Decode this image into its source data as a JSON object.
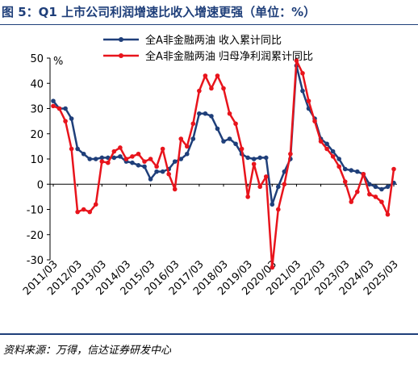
{
  "header": {
    "title": "图 5：Q1 上市公司利润增速比收入增速更强（单位：%）"
  },
  "footer": {
    "source": "资料来源：万得，信达证券研发中心"
  },
  "colors": {
    "revenue": "#1f3f7a",
    "profit": "#e8141c",
    "rule": "#1f3f7a"
  },
  "chart_data": {
    "type": "line",
    "ylabel": "%",
    "ylim": [
      -30,
      50
    ],
    "yticks": [
      -30,
      -20,
      -10,
      0,
      10,
      20,
      30,
      40,
      50
    ],
    "xticks": [
      "2011/03",
      "2012/03",
      "2013/03",
      "2014/03",
      "2015/03",
      "2016/03",
      "2017/03",
      "2018/03",
      "2019/03",
      "2020/03",
      "2021/03",
      "2022/03",
      "2023/03",
      "2024/03",
      "2025/03"
    ],
    "grid": false,
    "legend_position": "top-center",
    "x": [
      "2011/03",
      "2011/06",
      "2011/09",
      "2011/12",
      "2012/03",
      "2012/06",
      "2012/09",
      "2012/12",
      "2013/03",
      "2013/06",
      "2013/09",
      "2013/12",
      "2014/03",
      "2014/06",
      "2014/09",
      "2014/12",
      "2015/03",
      "2015/06",
      "2015/09",
      "2015/12",
      "2016/03",
      "2016/06",
      "2016/09",
      "2016/12",
      "2017/03",
      "2017/06",
      "2017/09",
      "2017/12",
      "2018/03",
      "2018/06",
      "2018/09",
      "2018/12",
      "2019/03",
      "2019/06",
      "2019/09",
      "2019/12",
      "2020/03",
      "2020/06",
      "2020/09",
      "2020/12",
      "2021/03",
      "2021/06",
      "2021/09",
      "2021/12",
      "2022/03",
      "2022/06",
      "2022/09",
      "2022/12",
      "2023/03",
      "2023/06",
      "2023/09",
      "2023/12",
      "2024/03",
      "2024/06",
      "2024/09",
      "2024/12",
      "2025/03"
    ],
    "series": [
      {
        "name": "全A非金融两油  收入累计同比",
        "color": "#1f3f7a",
        "values": [
          33,
          30,
          30,
          26,
          14,
          12,
          10,
          10,
          10.5,
          10.5,
          10.5,
          11,
          9,
          8.5,
          7.5,
          7,
          2,
          5,
          5,
          6,
          9,
          10,
          12,
          18,
          28,
          28,
          27,
          22,
          17,
          18,
          16,
          12,
          10.5,
          10,
          10.5,
          10.5,
          -8,
          -1,
          5,
          10,
          47,
          37,
          30,
          26,
          18,
          16,
          13,
          10,
          6,
          5.5,
          5,
          4,
          0,
          -1,
          -2,
          -1,
          0.5
        ]
      },
      {
        "name": "全A非金融两油  归母净利润累计同比",
        "color": "#e8141c",
        "values": [
          31,
          30,
          25,
          14,
          -11,
          -10,
          -11,
          -8,
          9,
          8.5,
          13,
          14.5,
          10,
          11,
          12,
          9,
          10,
          7,
          14,
          4,
          -2,
          18,
          15,
          24,
          37,
          43,
          38,
          43,
          38,
          28,
          24,
          14,
          -5,
          8,
          -1,
          3,
          -33,
          -10,
          0,
          12,
          49,
          44,
          33,
          25,
          17,
          14,
          11,
          7,
          1,
          -7,
          -3,
          4,
          -4,
          -5,
          -7,
          -12,
          6
        ]
      }
    ]
  }
}
